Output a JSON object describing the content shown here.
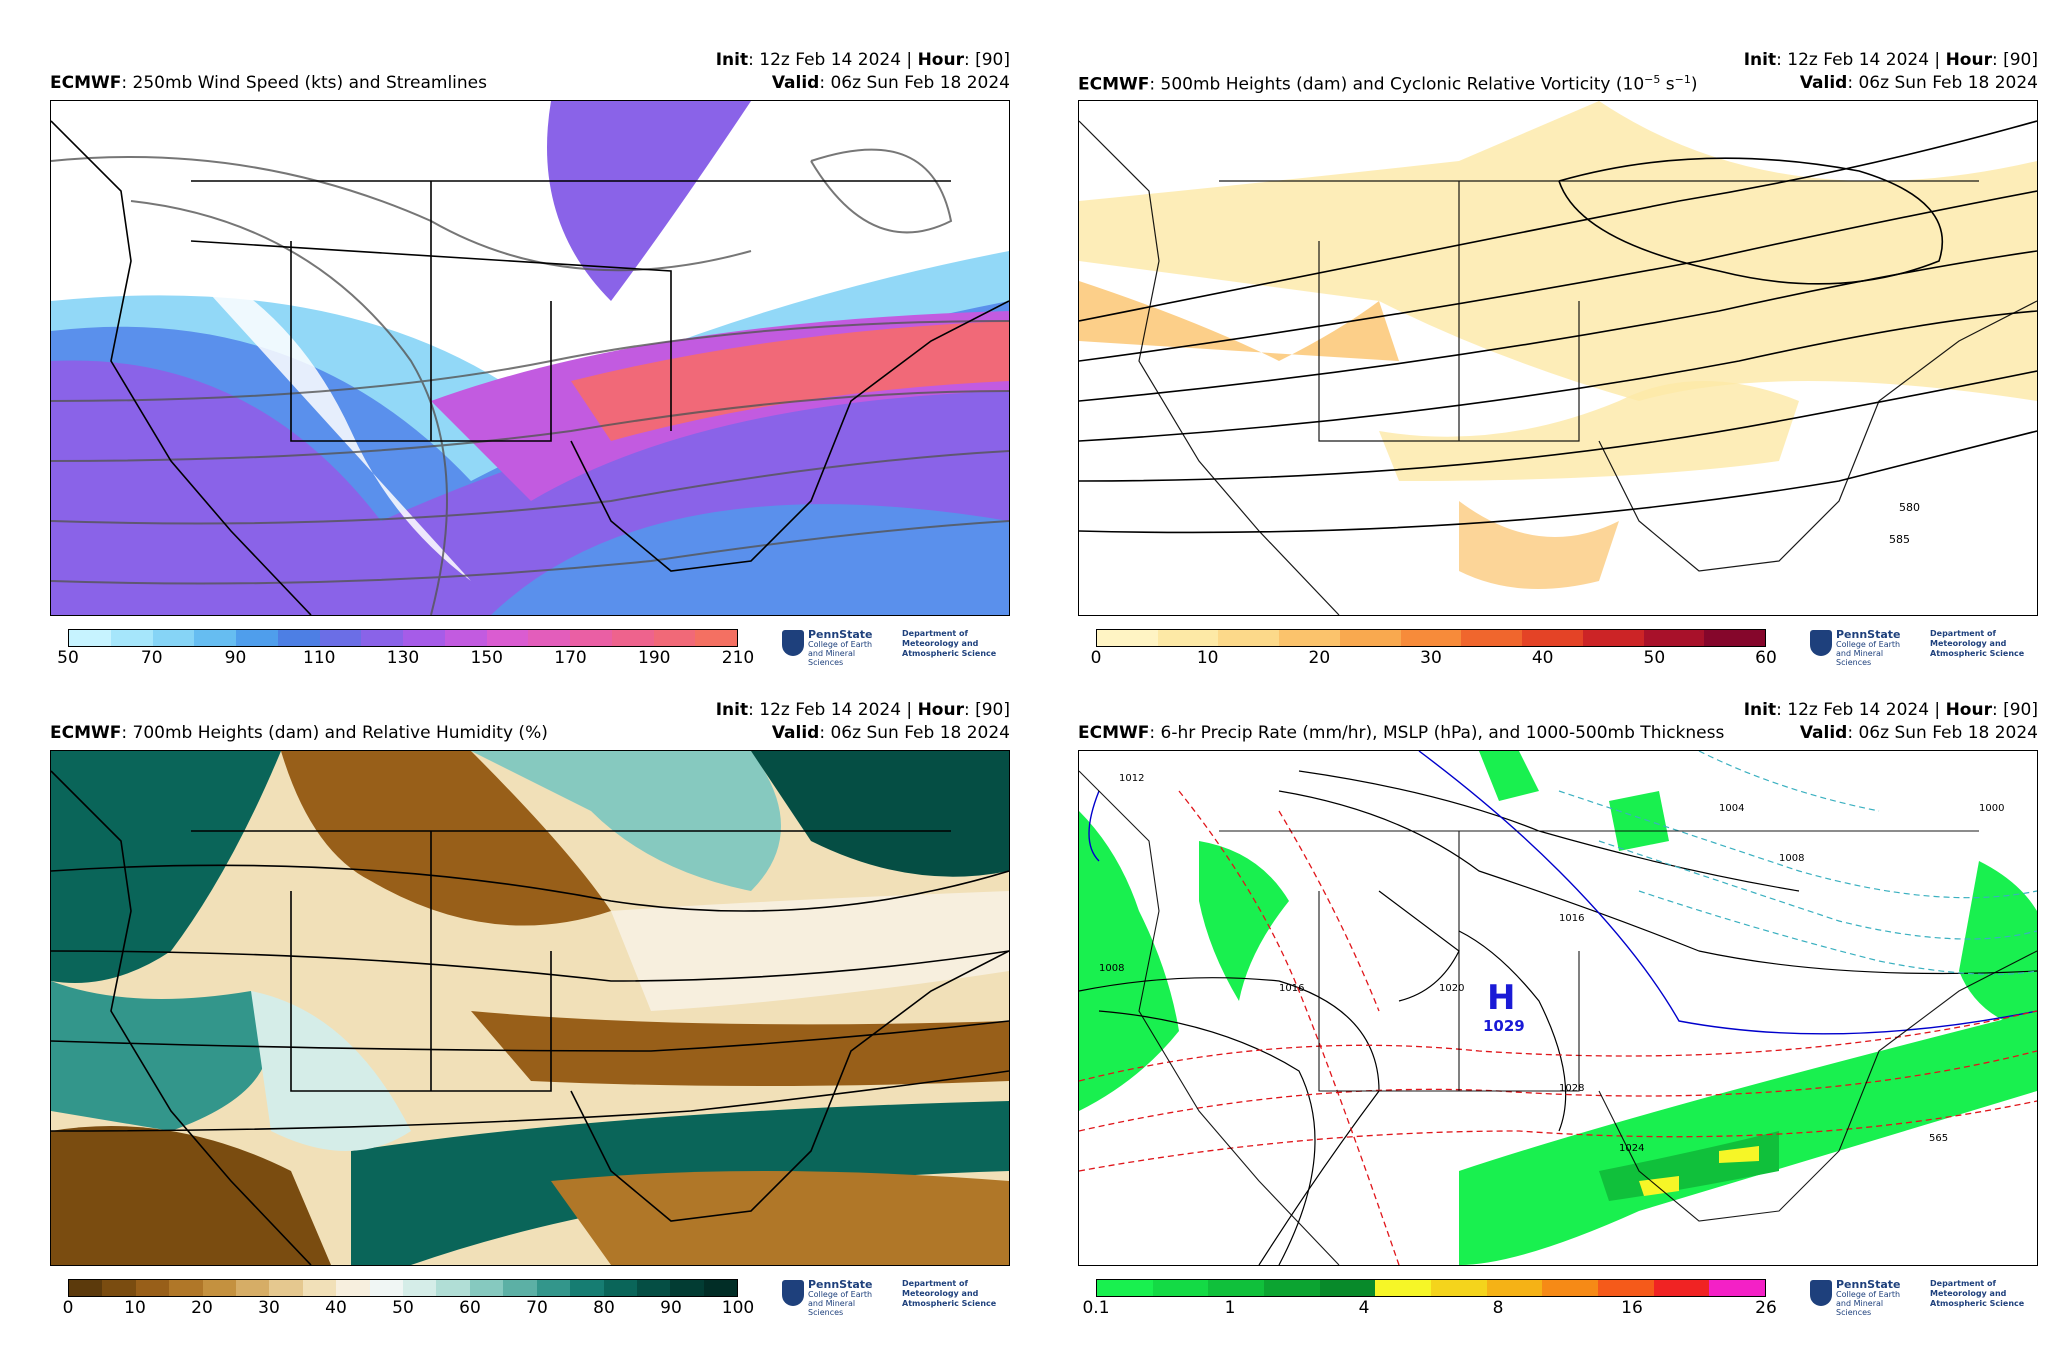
{
  "panels": {
    "p1": {
      "model": "ECMWF",
      "title": ": 250mb Wind Speed (kts) and Streamlines",
      "init_label": "Init",
      "init_value": ": 12z Feb 14 2024 | ",
      "hour_label": "Hour",
      "hour_value": ": [90]",
      "valid_label": "Valid",
      "valid_value": ": 06z Sun Feb 18 2024",
      "colorbar_ticks": [
        "50",
        "70",
        "90",
        "110",
        "130",
        "150",
        "170",
        "190",
        "210"
      ],
      "colorbar_colors": [
        "#c7f3ff",
        "#a6e6fb",
        "#86d4f6",
        "#66bdf1",
        "#4f9eec",
        "#4d7fe4",
        "#6b6ee6",
        "#8a63e8",
        "#a65ce8",
        "#c25be0",
        "#da5cd1",
        "#e35dbb",
        "#ea5fa4",
        "#ee638d",
        "#f16978",
        "#f47062"
      ]
    },
    "p2": {
      "model": "ECMWF",
      "title": ": 500mb Heights (dam) and Cyclonic Relative Vorticity (10",
      "title_exp": "−5",
      "title_unit": " s",
      "title_exp2": "−1",
      "title_close": ")",
      "init_label": "Init",
      "init_value": ": 12z Feb 14 2024 | ",
      "hour_label": "Hour",
      "hour_value": ": [90]",
      "valid_label": "Valid",
      "valid_value": ": 06z Sun Feb 18 2024",
      "contour_labels": [
        "580",
        "585"
      ],
      "colorbar_ticks": [
        "0",
        "10",
        "20",
        "30",
        "40",
        "50",
        "60"
      ],
      "colorbar_colors": [
        "#fff4c4",
        "#fde9a6",
        "#fcd98a",
        "#fbc36c",
        "#f9a94f",
        "#f78b3a",
        "#f0662d",
        "#e44326",
        "#cc2426",
        "#a8112a",
        "#85062b"
      ]
    },
    "p3": {
      "model": "ECMWF",
      "title": ": 700mb Heights (dam) and Relative Humidity (%)",
      "init_label": "Init",
      "init_value": ": 12z Feb 14 2024 | ",
      "hour_label": "Hour",
      "hour_value": ": [90]",
      "valid_label": "Valid",
      "valid_value": ": 06z Sun Feb 18 2024",
      "colorbar_ticks": [
        "0",
        "10",
        "20",
        "30",
        "40",
        "50",
        "60",
        "70",
        "80",
        "90",
        "100"
      ],
      "colorbar_colors": [
        "#5c3a0c",
        "#7a4c10",
        "#985f19",
        "#b07728",
        "#c4913f",
        "#d6ad66",
        "#e5c88f",
        "#f1e0b8",
        "#f7efde",
        "#f0f6f4",
        "#d5ede8",
        "#b1ded6",
        "#86c9bf",
        "#5cb0a5",
        "#33968b",
        "#167d72",
        "#0a6559",
        "#054e44",
        "#023c33",
        "#012d26"
      ]
    },
    "p4": {
      "model": "ECMWF",
      "title": ": 6-hr Precip Rate (mm/hr), MSLP (hPa), and 1000-500mb Thickness",
      "init_label": "Init",
      "init_value": ": 12z Feb 14 2024 | ",
      "hour_label": "Hour",
      "hour_value": ": [90]",
      "valid_label": "Valid",
      "valid_value": ": 06z Sun Feb 18 2024",
      "high_symbol": "H",
      "high_value": "1029",
      "contour_labels": [
        "1012",
        "1004",
        "1008",
        "1000",
        "1016",
        "1020",
        "1024",
        "1028",
        "1016",
        "1008",
        "565"
      ],
      "colorbar_ticks": [
        "0.1",
        "1",
        "4",
        "8",
        "16",
        "26"
      ],
      "colorbar_colors": [
        "#19f04f",
        "#14da45",
        "#10c03b",
        "#0ca431",
        "#088a2a",
        "#f6f627",
        "#f4d41c",
        "#f5b216",
        "#f68a16",
        "#f55a1a",
        "#f02323",
        "#f321c6"
      ]
    }
  },
  "logo": {
    "name": "PennState",
    "college": "College of Earth and Mineral Sciences",
    "department": "Department of Meteorology and Atmospheric Science"
  }
}
